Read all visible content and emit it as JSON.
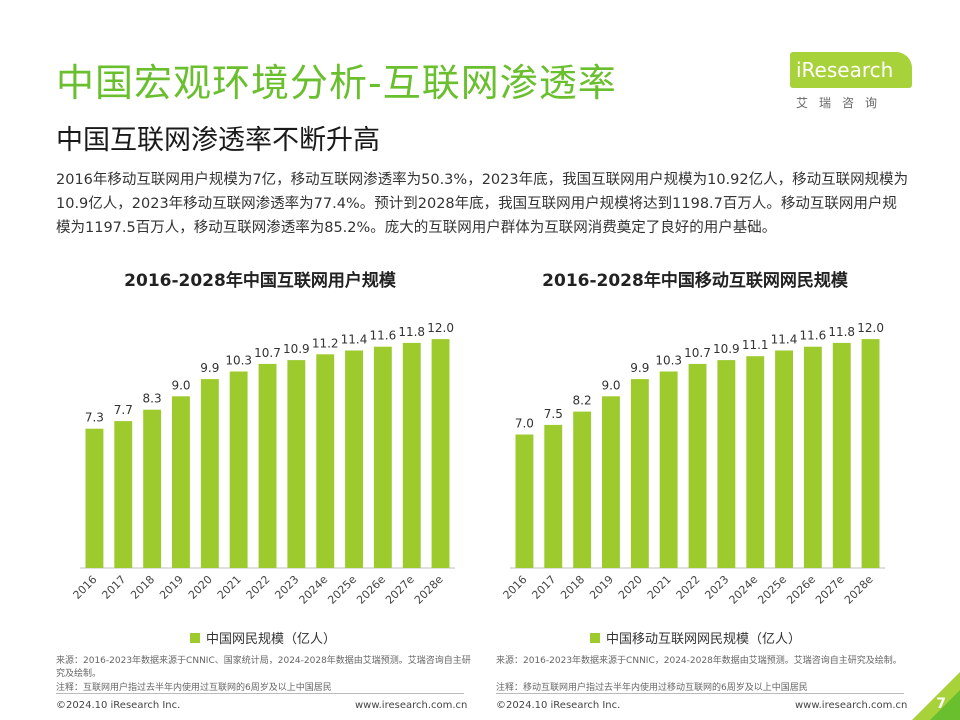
{
  "page": {
    "title": "中国宏观环境分析-互联网渗透率",
    "subtitle": "中国互联网渗透率不断升高",
    "body": "2016年移动互联网用户规模为7亿，移动互联网渗透率为50.3%，2023年底，我国互联网用户规模为10.92亿人，移动互联网规模为10.9亿人，2023年移动互联网渗透率为77.4%。预计到2028年底，我国互联网用户规模将达到1198.7百万人。移动互联网用户规模为1197.5百万人，移动互联网渗透率为85.2%。庞大的互联网用户群体为互联网消费奠定了良好的用户基础。",
    "page_number": "7"
  },
  "logo": {
    "name": "iResearch",
    "sub": "艾瑞咨询"
  },
  "colors": {
    "title_green": "#6abf2e",
    "bar_green": "#9dcb2e",
    "logo_green": "#a8d23a"
  },
  "chart_data": [
    {
      "type": "bar",
      "title": "2016-2028年中国互联网用户规模",
      "categories": [
        "2016",
        "2017",
        "2018",
        "2019",
        "2020",
        "2021",
        "2022",
        "2023",
        "2024e",
        "2025e",
        "2026e",
        "2027e",
        "2028e"
      ],
      "values": [
        7.3,
        7.7,
        8.3,
        9.0,
        9.9,
        10.3,
        10.7,
        10.9,
        11.2,
        11.4,
        11.6,
        11.8,
        12.0
      ],
      "labels": [
        "7.3",
        "7.7",
        "8.3",
        "9.0",
        "9.9",
        "10.3",
        "10.7",
        "10.9",
        "11.2",
        "11.4",
        "11.6",
        "11.8",
        "12.0"
      ],
      "legend": "中国网民规模（亿人）",
      "ylim": [
        0,
        13
      ],
      "grid": false,
      "source": "来源：2016-2023年数据来源于CNNIC、国家统计局，2024-2028年数据由艾瑞预测。艾瑞咨询自主研究及绘制。",
      "note": "注释：互联网用户指过去半年内使用过互联网的6周岁及以上中国居民",
      "footer_left": "©2024.10 iResearch Inc.",
      "footer_right": "www.iresearch.com.cn"
    },
    {
      "type": "bar",
      "title": "2016-2028年中国移动互联网网民规模",
      "categories": [
        "2016",
        "2017",
        "2018",
        "2019",
        "2020",
        "2021",
        "2022",
        "2023",
        "2024e",
        "2025e",
        "2026e",
        "2027e",
        "2028e"
      ],
      "values": [
        7.0,
        7.5,
        8.2,
        9.0,
        9.9,
        10.3,
        10.7,
        10.9,
        11.1,
        11.4,
        11.6,
        11.8,
        12.0
      ],
      "labels": [
        "7.0",
        "7.5",
        "8.2",
        "9.0",
        "9.9",
        "10.3",
        "10.7",
        "10.9",
        "11.1",
        "11.4",
        "11.6",
        "11.8",
        "12.0"
      ],
      "legend": "中国移动互联网网民规模（亿人）",
      "ylim": [
        0,
        13
      ],
      "grid": false,
      "source": "来源：2016-2023年数据来源于CNNIC，2024-2028年数据由艾瑞预测。艾瑞咨询自主研究及绘制。",
      "note": "注释：移动互联网用户指过去半年内使用过移动互联网的6周岁及以上中国居民",
      "footer_left": "©2024.10 iResearch Inc.",
      "footer_right": "www.iresearch.com.cn"
    }
  ]
}
